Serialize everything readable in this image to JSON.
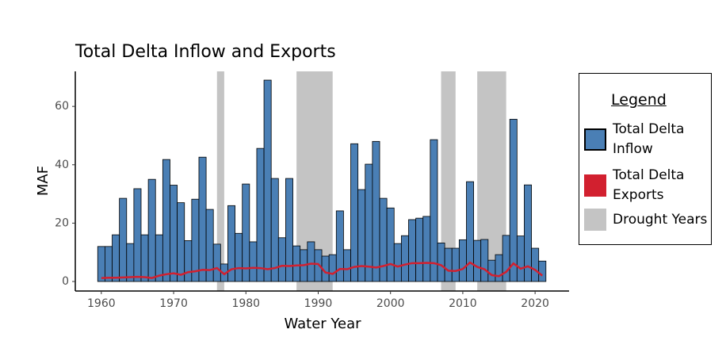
{
  "chart_data": {
    "type": "bar",
    "title": "Total Delta Inflow and Exports",
    "x_label": "Water Year",
    "y_label": "MAF",
    "legend_title": "Legend",
    "x": [
      1960,
      1961,
      1962,
      1963,
      1964,
      1965,
      1966,
      1967,
      1968,
      1969,
      1970,
      1971,
      1972,
      1973,
      1974,
      1975,
      1976,
      1977,
      1978,
      1979,
      1980,
      1981,
      1982,
      1983,
      1984,
      1985,
      1986,
      1987,
      1988,
      1989,
      1990,
      1991,
      1992,
      1993,
      1994,
      1995,
      1996,
      1997,
      1998,
      1999,
      2000,
      2001,
      2002,
      2003,
      2004,
      2005,
      2006,
      2007,
      2008,
      2009,
      2010,
      2011,
      2012,
      2013,
      2014,
      2015,
      2016,
      2017,
      2018,
      2019,
      2020,
      2021
    ],
    "series": [
      {
        "name": "Total Delta Inflow",
        "type": "bar",
        "color": "#4a7fb5",
        "values": [
          12,
          12,
          16,
          28.5,
          13,
          31.8,
          16,
          35,
          16,
          41.8,
          33,
          27,
          14,
          28.2,
          42.6,
          24.7,
          12.8,
          6,
          26,
          16.5,
          33.4,
          13.6,
          45.6,
          69,
          35.3,
          15,
          35.3,
          12.2,
          10.9,
          13.6,
          10.9,
          8.7,
          9.2,
          24.2,
          10.9,
          47.2,
          31.5,
          40.2,
          48,
          28.5,
          25.2,
          13,
          15.7,
          21.2,
          21.7,
          22.3,
          48.6,
          13.2,
          11.4,
          11.4,
          14.3,
          34.2,
          14.1,
          14.4,
          7.3,
          9.2,
          15.8,
          55.6,
          15.6,
          33.1,
          11.4,
          7
        ]
      },
      {
        "name": "Total Delta Exports",
        "type": "line",
        "color": "#d2202f",
        "values": [
          1.2,
          1.3,
          1.3,
          1.4,
          1.5,
          1.6,
          1.5,
          1.2,
          2,
          2.5,
          2.8,
          2.3,
          3.2,
          3.5,
          4,
          3.9,
          4.6,
          2.5,
          4.2,
          4.6,
          4.5,
          4.7,
          4.6,
          4.2,
          4.6,
          5.4,
          5.3,
          5.5,
          5.6,
          6.1,
          6,
          3.1,
          2.6,
          4.3,
          4.2,
          5,
          5.3,
          5.1,
          4.8,
          5.3,
          6,
          5.1,
          5.8,
          6.3,
          6.3,
          6.4,
          6.3,
          5.6,
          3.7,
          3.6,
          4.3,
          6.5,
          5,
          4.2,
          2.2,
          1.8,
          3.3,
          6.2,
          4.4,
          5.2,
          4,
          2
        ]
      }
    ],
    "shading": {
      "name": "Drought Years",
      "color": "#c4c4c4",
      "ranges": [
        [
          1976,
          1977
        ],
        [
          1987,
          1992
        ],
        [
          2007,
          2009
        ],
        [
          2012,
          2016
        ]
      ]
    },
    "xlim": [
      1956.4,
      2024.7
    ],
    "ylim": [
      -3.26,
      72
    ],
    "xticks": [
      1960,
      1970,
      1980,
      1990,
      2000,
      2010,
      2020
    ],
    "yticks": [
      0,
      20,
      40,
      60
    ]
  }
}
